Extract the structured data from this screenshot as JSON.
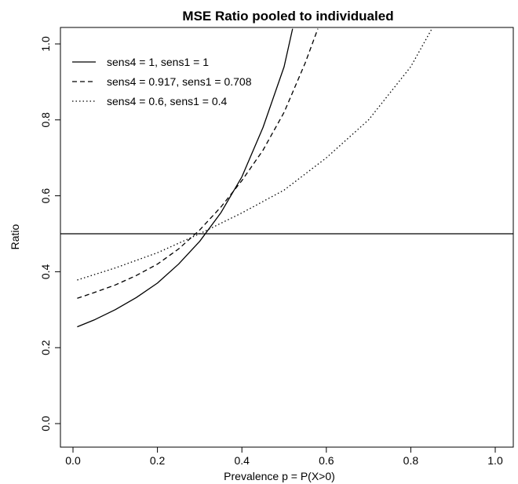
{
  "chart_data": {
    "type": "line",
    "title": "MSE Ratio pooled to individualed",
    "xlabel": "Prevalence p = P(X>0)",
    "ylabel": "Ratio",
    "xlim": [
      0,
      1
    ],
    "ylim": [
      0,
      1
    ],
    "x_ticks": [
      0.0,
      0.2,
      0.4,
      0.6,
      0.8,
      1.0
    ],
    "x_tick_labels": [
      "0.0",
      "0.2",
      "0.4",
      "0.6",
      "0.8",
      "1.0"
    ],
    "y_ticks": [
      0.0,
      0.2,
      0.4,
      0.6,
      0.8,
      1.0
    ],
    "y_tick_labels": [
      "0.0",
      "0.2",
      "0.4",
      "0.6",
      "0.8",
      "1.0"
    ],
    "grid": false,
    "legend_position": "top-left",
    "reference_line": {
      "orientation": "horizontal",
      "y": 0.5
    },
    "series": [
      {
        "name": "sens4 = 1, sens1 = 1",
        "line_style": "solid",
        "x": [
          0.01,
          0.05,
          0.1,
          0.15,
          0.2,
          0.25,
          0.3,
          0.35,
          0.4,
          0.45,
          0.5,
          0.52
        ],
        "y": [
          0.255,
          0.273,
          0.3,
          0.332,
          0.37,
          0.42,
          0.48,
          0.555,
          0.65,
          0.78,
          0.94,
          1.04
        ]
      },
      {
        "name": "sens4 = 0.917, sens1 = 0.708",
        "line_style": "dashed",
        "x": [
          0.01,
          0.05,
          0.1,
          0.15,
          0.2,
          0.25,
          0.3,
          0.35,
          0.4,
          0.45,
          0.5,
          0.55,
          0.58
        ],
        "y": [
          0.33,
          0.345,
          0.365,
          0.39,
          0.42,
          0.46,
          0.51,
          0.57,
          0.64,
          0.72,
          0.82,
          0.95,
          1.04
        ]
      },
      {
        "name": "sens4 = 0.6, sens1 = 0.4",
        "line_style": "dotted",
        "x": [
          0.01,
          0.1,
          0.2,
          0.3,
          0.4,
          0.5,
          0.6,
          0.7,
          0.8,
          0.85
        ],
        "y": [
          0.378,
          0.41,
          0.45,
          0.5,
          0.555,
          0.615,
          0.7,
          0.8,
          0.94,
          1.04
        ]
      }
    ]
  }
}
